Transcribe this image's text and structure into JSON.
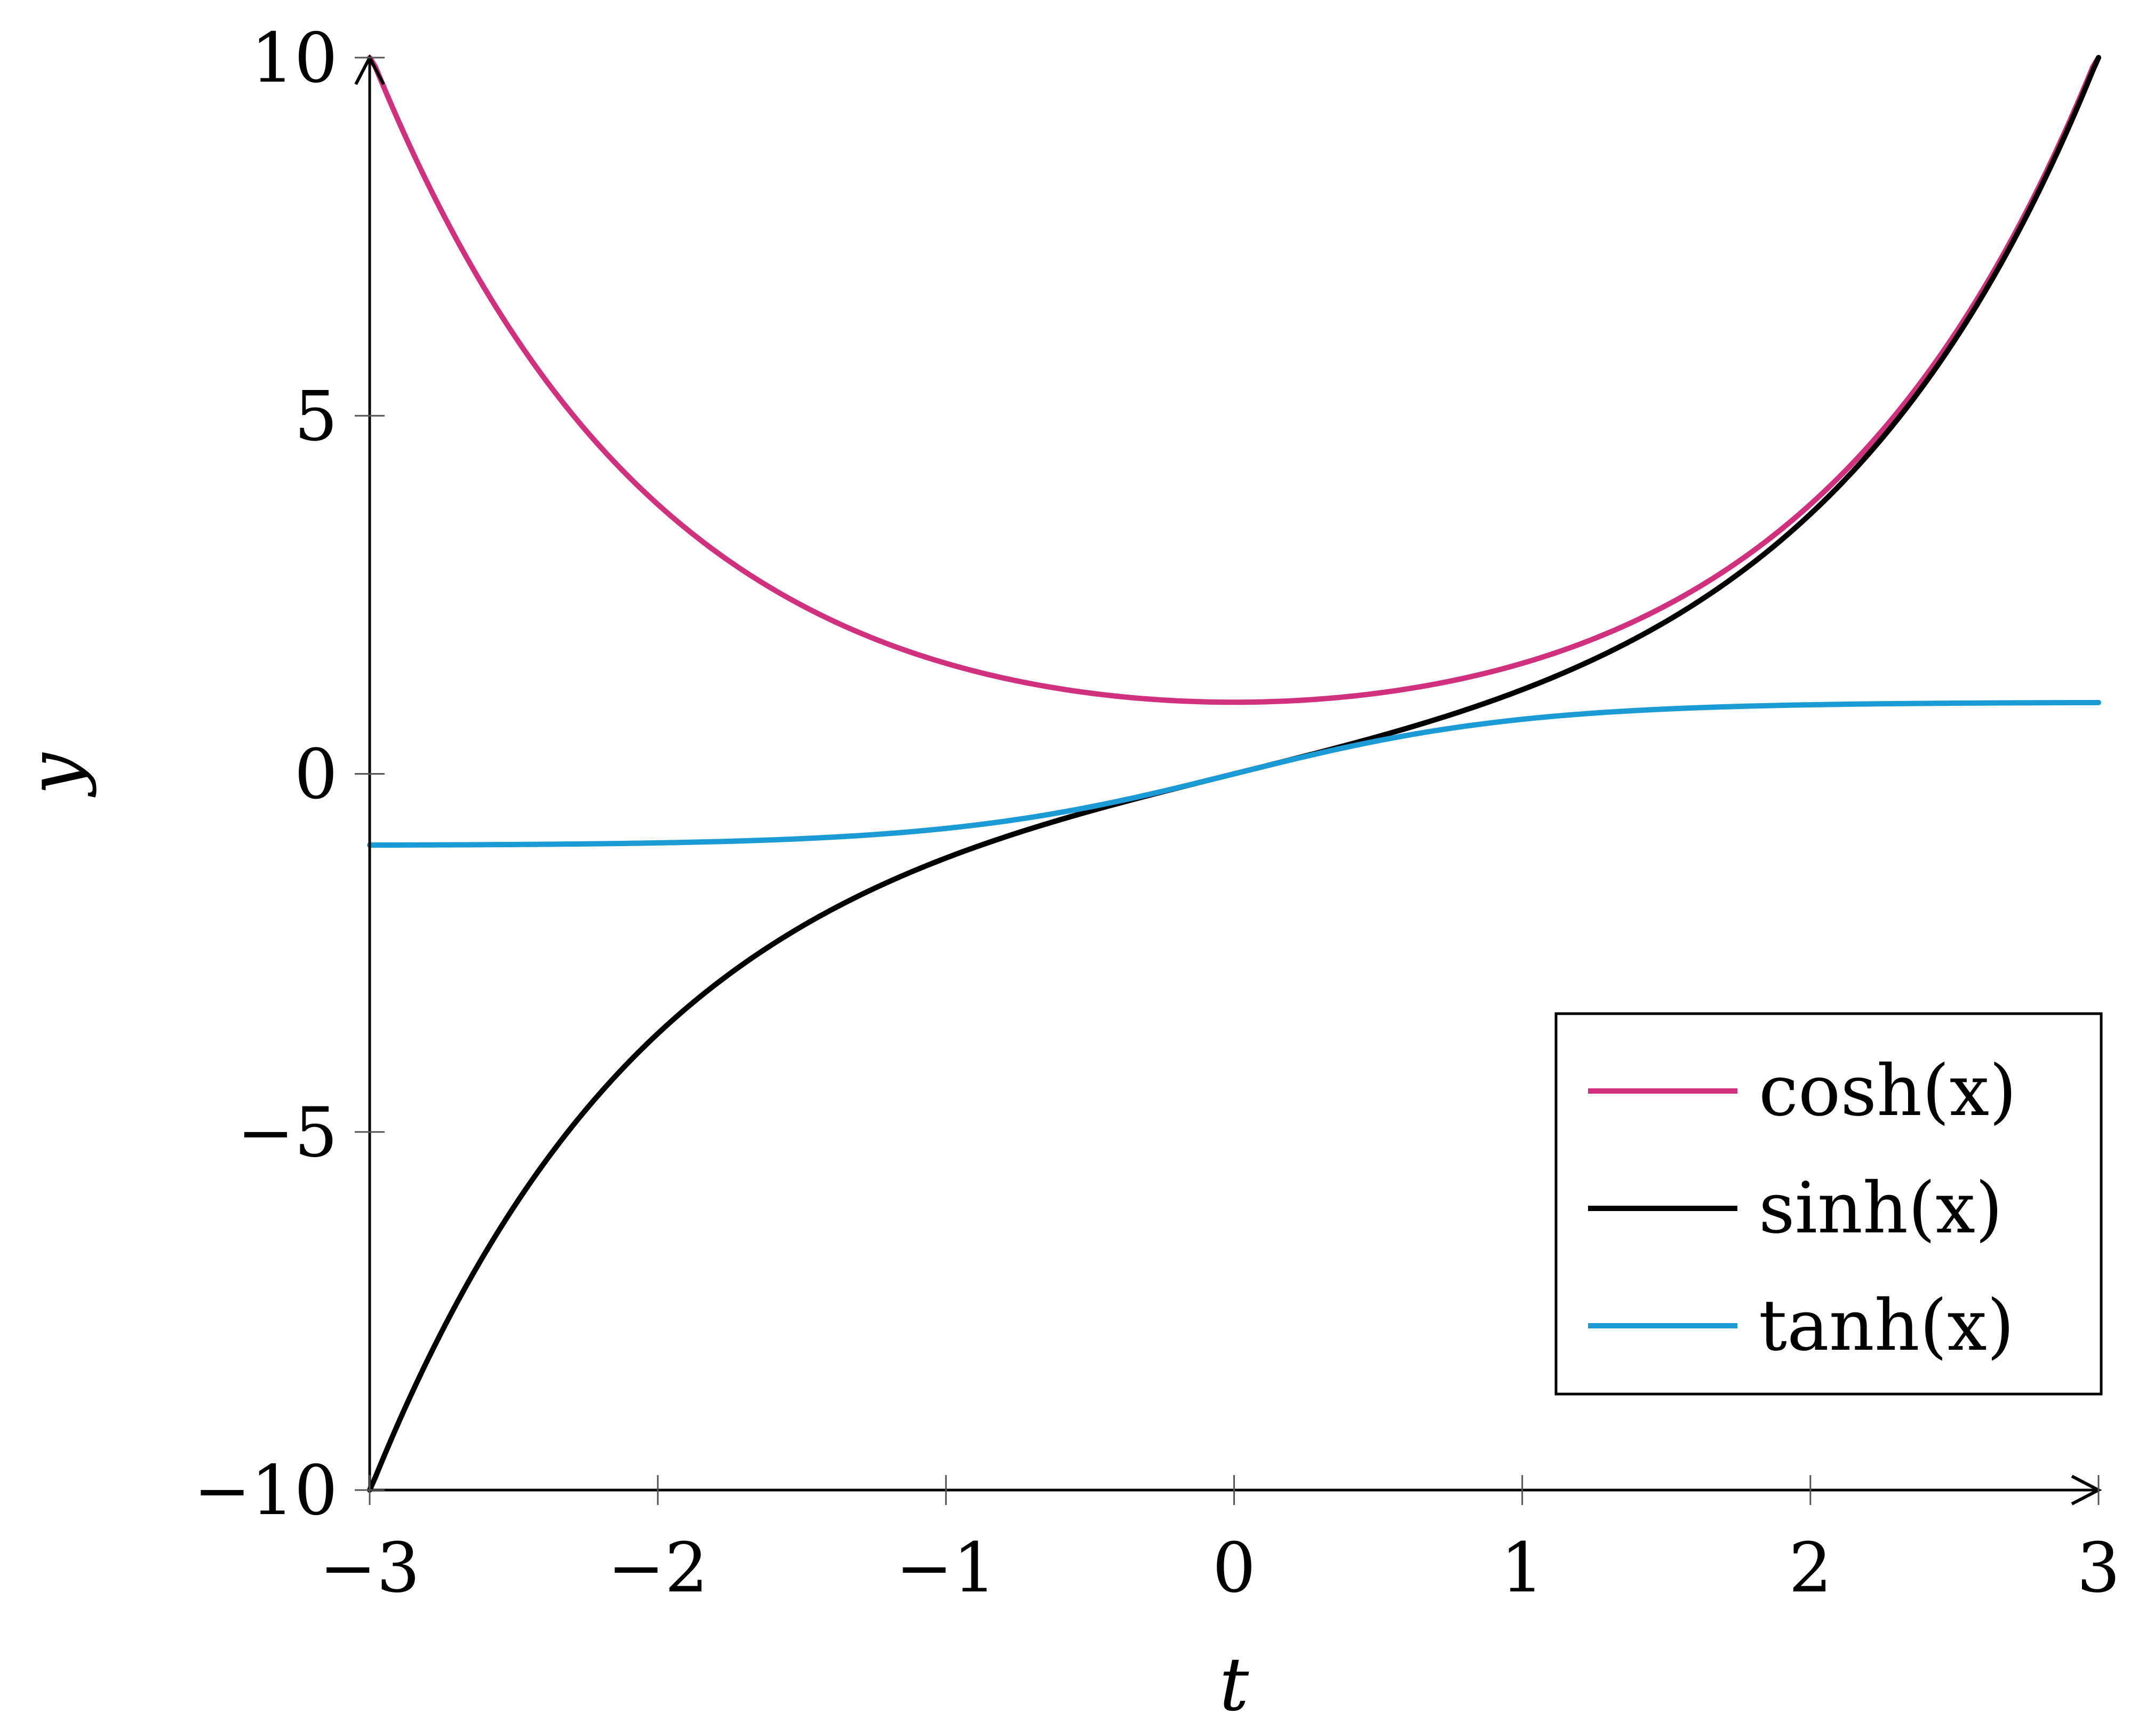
{
  "chart_data": {
    "type": "line",
    "xlabel": "t",
    "ylabel": "y",
    "xlim": [
      -3,
      3
    ],
    "ylim": [
      -10,
      10
    ],
    "x_ticks": [
      -3,
      -2,
      -1,
      0,
      1,
      2,
      3
    ],
    "y_ticks": [
      -10,
      -5,
      0,
      5,
      10
    ],
    "x_tick_labels": [
      "−3",
      "−2",
      "−1",
      "0",
      "1",
      "2",
      "3"
    ],
    "y_tick_labels": [
      "−10",
      "−5",
      "0",
      "5",
      "10"
    ],
    "grid": false,
    "legend_position": "bottom-right",
    "series": [
      {
        "name": "cosh(x)",
        "color": "#D1307E",
        "x": [
          -3,
          -2.75,
          -2.5,
          -2.25,
          -2,
          -1.75,
          -1.5,
          -1.25,
          -1,
          -0.75,
          -0.5,
          -0.25,
          0,
          0.25,
          0.5,
          0.75,
          1,
          1.25,
          1.5,
          1.75,
          2,
          2.25,
          2.5,
          2.75,
          3
        ],
        "y": [
          10.07,
          7.85,
          6.13,
          4.8,
          3.76,
          2.96,
          2.35,
          1.89,
          1.54,
          1.29,
          1.13,
          1.03,
          1.0,
          1.03,
          1.13,
          1.29,
          1.54,
          1.89,
          2.35,
          2.96,
          3.76,
          4.8,
          6.13,
          7.85,
          10.07
        ]
      },
      {
        "name": "sinh(x)",
        "color": "#000000",
        "x": [
          -3,
          -2.75,
          -2.5,
          -2.25,
          -2,
          -1.75,
          -1.5,
          -1.25,
          -1,
          -0.75,
          -0.5,
          -0.25,
          0,
          0.25,
          0.5,
          0.75,
          1,
          1.25,
          1.5,
          1.75,
          2,
          2.25,
          2.5,
          2.75,
          3
        ],
        "y": [
          -10.02,
          -7.79,
          -6.05,
          -4.69,
          -3.63,
          -2.79,
          -2.13,
          -1.6,
          -1.18,
          -0.82,
          -0.52,
          -0.25,
          0,
          0.25,
          0.52,
          0.82,
          1.18,
          1.6,
          2.13,
          2.79,
          3.63,
          4.69,
          6.05,
          7.79,
          10.02
        ]
      },
      {
        "name": "tanh(x)",
        "color": "#1A9BD6",
        "x": [
          -3,
          -2.75,
          -2.5,
          -2.25,
          -2,
          -1.75,
          -1.5,
          -1.25,
          -1,
          -0.75,
          -0.5,
          -0.25,
          0,
          0.25,
          0.5,
          0.75,
          1,
          1.25,
          1.5,
          1.75,
          2,
          2.25,
          2.5,
          2.75,
          3
        ],
        "y": [
          -0.995,
          -0.992,
          -0.987,
          -0.978,
          -0.964,
          -0.941,
          -0.905,
          -0.848,
          -0.762,
          -0.635,
          -0.462,
          -0.245,
          0,
          0.245,
          0.462,
          0.635,
          0.762,
          0.848,
          0.905,
          0.941,
          0.964,
          0.978,
          0.987,
          0.992,
          0.995
        ]
      }
    ],
    "legend": [
      {
        "label": "cosh(x)",
        "color": "#D1307E"
      },
      {
        "label": "sinh(x)",
        "color": "#000000"
      },
      {
        "label": "tanh(x)",
        "color": "#1A9BD6"
      }
    ]
  }
}
